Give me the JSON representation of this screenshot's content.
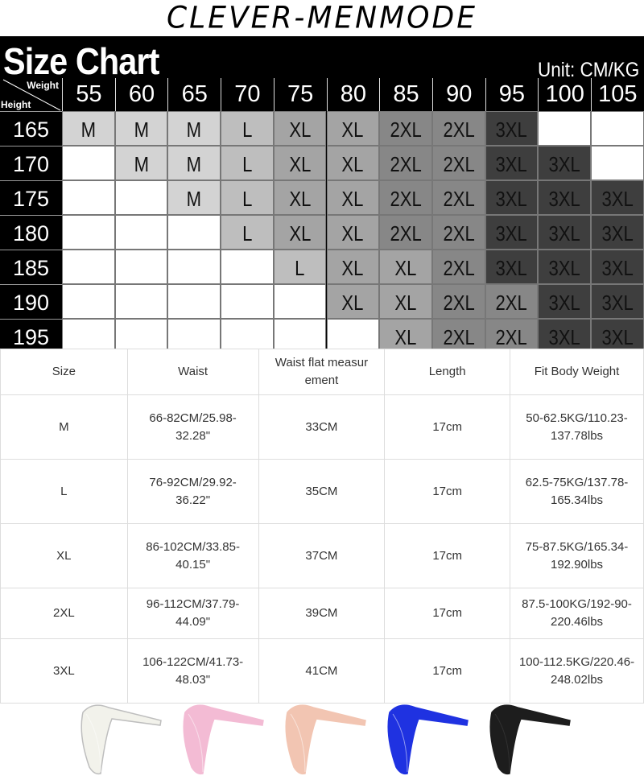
{
  "brand": "CLEVER-MENMODE",
  "chart": {
    "title": "Size Chart",
    "unit": "Unit:  CM/KG",
    "corner_weight": "Weight",
    "corner_height": "Height",
    "weights": [
      "55",
      "60",
      "65",
      "70",
      "75",
      "80",
      "85",
      "90",
      "95",
      "100",
      "105"
    ],
    "size_colors": {
      "M": "#d3d3d3",
      "L": "#bebebe",
      "XL": "#a4a4a4",
      "2XL": "#878787",
      "3XL": "#3e3e3e"
    },
    "rows": [
      {
        "height": "165",
        "sizes": [
          "M",
          "M",
          "M",
          "L",
          "XL",
          "XL",
          "2XL",
          "2XL",
          "3XL",
          "",
          ""
        ]
      },
      {
        "height": "170",
        "sizes": [
          "",
          "M",
          "M",
          "L",
          "XL",
          "XL",
          "2XL",
          "2XL",
          "3XL",
          "3XL",
          ""
        ]
      },
      {
        "height": "175",
        "sizes": [
          "",
          "",
          "M",
          "L",
          "XL",
          "XL",
          "2XL",
          "2XL",
          "3XL",
          "3XL",
          "3XL"
        ]
      },
      {
        "height": "180",
        "sizes": [
          "",
          "",
          "",
          "L",
          "XL",
          "XL",
          "2XL",
          "2XL",
          "3XL",
          "3XL",
          "3XL"
        ]
      },
      {
        "height": "185",
        "sizes": [
          "",
          "",
          "",
          "",
          "L",
          "XL",
          "XL",
          "2XL",
          "3XL",
          "3XL",
          "3XL"
        ]
      },
      {
        "height": "190",
        "sizes": [
          "",
          "",
          "",
          "",
          "",
          "XL",
          "XL",
          "2XL",
          "2XL",
          "3XL",
          "3XL"
        ]
      },
      {
        "height": "195",
        "sizes": [
          "",
          "",
          "",
          "",
          "",
          "",
          "XL",
          "2XL",
          "2XL",
          "3XL",
          "3XL"
        ]
      }
    ]
  },
  "table": {
    "headers": [
      "Size",
      "Waist",
      "Waist flat measur ement",
      "Length",
      "Fit Body Weight"
    ],
    "rows": [
      [
        "M",
        "66-82CM/25.98-32.28\"",
        "33CM",
        "17cm",
        "50-62.5KG/110.23-137.78lbs"
      ],
      [
        "L",
        "76-92CM/29.92-36.22\"",
        "35CM",
        "17cm",
        "62.5-75KG/137.78-165.34lbs"
      ],
      [
        "XL",
        "86-102CM/33.85-40.15\"",
        "37CM",
        "17cm",
        "75-87.5KG/165.34-192.90lbs"
      ],
      [
        "2XL",
        "96-112CM/37.79-44.09\"",
        "39CM",
        "17cm",
        "87.5-100KG/192-90-220.46lbs"
      ],
      [
        "3XL",
        "106-122CM/41.73-48.03\"",
        "41CM",
        "17cm",
        "100-112.5KG/220.46-248.02lbs"
      ]
    ]
  },
  "products": [
    {
      "color_name": "white",
      "color": "#f2f2ea"
    },
    {
      "color_name": "pink",
      "color": "#f3b8d2"
    },
    {
      "color_name": "peach",
      "color": "#f2c2ae"
    },
    {
      "color_name": "blue",
      "color": "#1428e0"
    },
    {
      "color_name": "black",
      "color": "#111111"
    }
  ]
}
